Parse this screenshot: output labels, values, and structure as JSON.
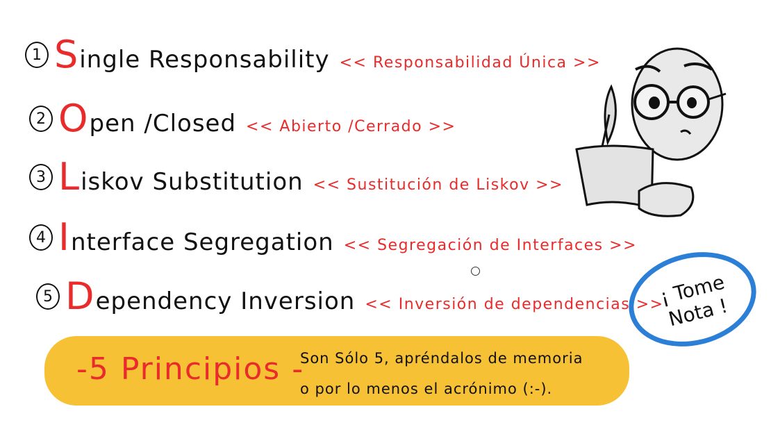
{
  "principles": [
    {
      "number": "1",
      "initial": "S",
      "rest": "ingle Responsability",
      "translation": "<< Responsabilidad Única >>"
    },
    {
      "number": "2",
      "initial": "O",
      "rest": "pen /Closed",
      "translation": "<< Abierto /Cerrado >>"
    },
    {
      "number": "3",
      "initial": "L",
      "rest": "iskov Substitution",
      "translation": "<< Sustitución de Liskov >>"
    },
    {
      "number": "4",
      "initial": "I",
      "rest": "nterface Segregation",
      "translation": "<< Segregación de Interfaces >>"
    },
    {
      "number": "5",
      "initial": "D",
      "rest": "ependency Inversion",
      "translation": "<< Inversión de dependencias >>"
    }
  ],
  "banner": {
    "title": "-5 Principios -",
    "note_line1": "Son Sólo 5, apréndalos de memoria",
    "note_line2": "o por lo menos el acrónimo (:-)."
  },
  "callout": {
    "line1": "¡ Tome",
    "line2": "Nota !"
  },
  "colors": {
    "red": "#ea2b2b",
    "yellow": "#f7c136",
    "blue": "#2b7fd6",
    "ink": "#111111"
  }
}
